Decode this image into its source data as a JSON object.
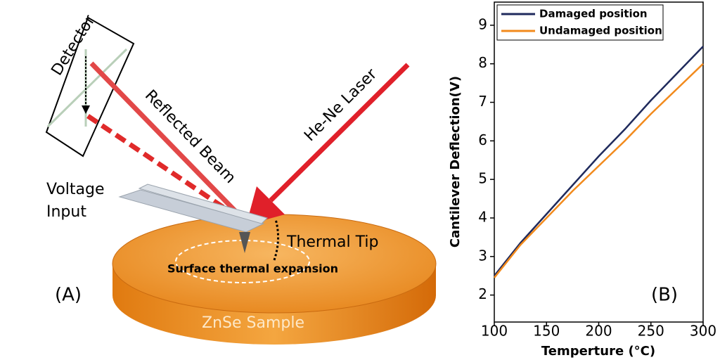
{
  "diagram": {
    "detector": "Detector",
    "reflected_beam": "Reflected Beam",
    "laser": "He-Ne Laser",
    "voltage_input": [
      "Voltage",
      "Input"
    ],
    "thermal_tip": "Thermal Tip",
    "expansion": "Surface thermal expansion",
    "panel": "(A)",
    "sample": "ZnSe Sample"
  },
  "chart_data": {
    "type": "line",
    "panel": "(B)",
    "x_label": "Temperture (°C)",
    "y_label": "Cantilever Deflection(V)",
    "x": [
      100,
      125,
      150,
      175,
      200,
      225,
      250,
      275,
      300
    ],
    "series": [
      {
        "name": "Damaged position",
        "color": "#1f2a5c",
        "values": [
          2.5,
          3.35,
          4.1,
          4.85,
          5.6,
          6.3,
          7.05,
          7.75,
          8.45
        ]
      },
      {
        "name": "Undamaged position",
        "color": "#f28a1c",
        "values": [
          2.45,
          3.3,
          4.0,
          4.7,
          5.35,
          6.0,
          6.7,
          7.35,
          8.0
        ]
      }
    ],
    "xlim": [
      100,
      300
    ],
    "xticks": [
      100,
      150,
      200,
      250,
      300
    ],
    "ylim": [
      1.3,
      9.6
    ],
    "yticks": [
      2,
      3,
      4,
      5,
      6,
      7,
      8,
      9
    ],
    "legend": "upper left"
  }
}
